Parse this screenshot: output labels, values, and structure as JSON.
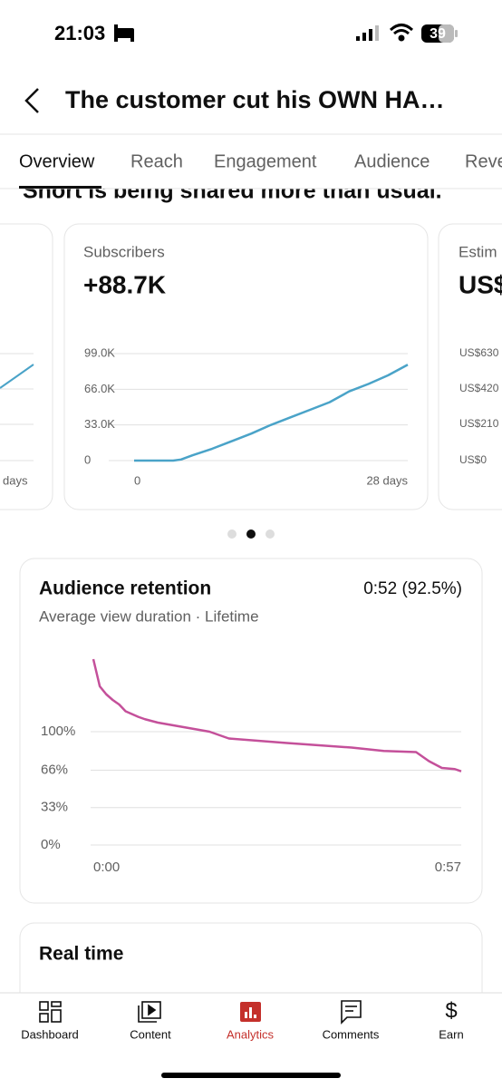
{
  "status_bar": {
    "time": "21:03",
    "battery": "39"
  },
  "header": {
    "title": "The customer cut his OWN HA…"
  },
  "tabs": [
    "Overview",
    "Reach",
    "Engagement",
    "Audience",
    "Reve"
  ],
  "banner": "Short is being shared more than usual.",
  "cards": {
    "left": {
      "x_end_label": "days"
    },
    "right": {
      "title": "Estim",
      "headline": "US$",
      "yticks": [
        "US$630",
        "US$420",
        "US$210",
        "US$0"
      ]
    }
  },
  "chart_data": [
    {
      "type": "line",
      "title": "Subscribers",
      "headline": "+88.7K",
      "color": "#4aa3c8",
      "x": [
        0,
        2,
        4,
        4.8,
        6,
        8,
        10,
        12,
        14,
        16,
        18,
        20,
        22,
        24,
        26,
        28
      ],
      "values": [
        0,
        0,
        0,
        1000,
        5000,
        11000,
        18000,
        25000,
        33000,
        40000,
        47000,
        54000,
        64000,
        71000,
        79000,
        88700
      ],
      "xlim": [
        0,
        28
      ],
      "xticks": [
        0,
        {
          "value": 28,
          "label": "28 days"
        }
      ],
      "ylim": [
        0,
        99000
      ],
      "yticks": [
        0,
        {
          "value": 33000,
          "label": "33.0K"
        },
        {
          "value": 66000,
          "label": "66.0K"
        },
        {
          "value": 99000,
          "label": "99.0K"
        }
      ],
      "grid": true
    },
    {
      "type": "line",
      "title": "Audience retention",
      "headline": "0:52 (92.5%)",
      "subtitle": "Average view duration · Lifetime",
      "color": "#c4509a",
      "x": [
        0,
        1,
        2,
        3,
        4,
        5,
        7,
        8,
        10,
        14,
        18,
        21,
        30,
        40,
        45,
        50,
        52,
        54,
        56,
        57
      ],
      "values": [
        164,
        140,
        133,
        128,
        124,
        118,
        113,
        111,
        108,
        104,
        100,
        94,
        90,
        86,
        83,
        82,
        74,
        68,
        67,
        65
      ],
      "xlim": [
        0,
        57
      ],
      "xticks": [
        {
          "value": 0,
          "label": "0:00"
        },
        {
          "value": 57,
          "label": "0:57"
        }
      ],
      "ylim": [
        0,
        170
      ],
      "yticks": [
        {
          "value": 0,
          "label": "0%"
        },
        {
          "value": 33,
          "label": "33%"
        },
        {
          "value": 66,
          "label": "66%"
        },
        {
          "value": 100,
          "label": "100%"
        }
      ],
      "grid": true
    }
  ],
  "real_time": {
    "title": "Real time"
  },
  "nav": [
    "Dashboard",
    "Content",
    "Analytics",
    "Comments",
    "Earn"
  ]
}
